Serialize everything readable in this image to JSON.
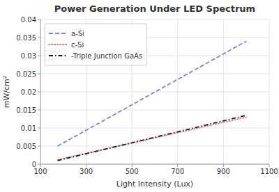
{
  "chart_data": {
    "type": "line",
    "title": "Power Generation Under LED Spectrum",
    "x_label": "Light Intensity (Lux)",
    "y_label": "mW/cm²",
    "xlim": [
      100,
      1100
    ],
    "ylim": [
      0,
      0.04
    ],
    "xticks": [
      100,
      300,
      500,
      700,
      900,
      1100
    ],
    "yticks": [
      0,
      0.005,
      0.01,
      0.015,
      0.02,
      0.025,
      0.03,
      0.035,
      0.04
    ],
    "x": [
      175,
      1000
    ],
    "series": [
      {
        "name": "a-Si",
        "color": "#8080d0",
        "line_style": "dashed",
        "values": [
          0.005,
          0.034
        ]
      },
      {
        "name": "c-Si",
        "color": "#e08080",
        "line_style": "dotted",
        "values": [
          0.0012,
          0.013
        ]
      },
      {
        "name": "-Triple Junction GaAs",
        "color": "#1a1a1a",
        "line_style": "dashdot",
        "values": [
          0.001,
          0.0135
        ]
      }
    ],
    "grid": true,
    "legend": "upper left"
  }
}
